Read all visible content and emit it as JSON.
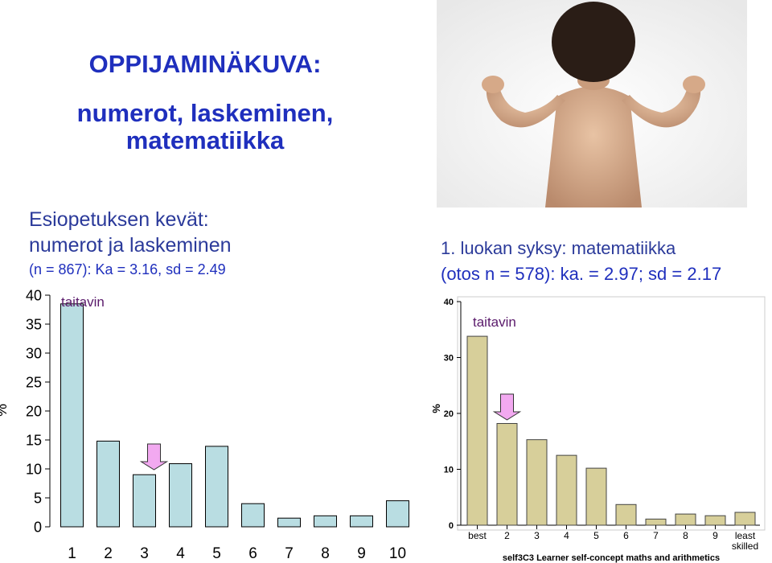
{
  "heading": {
    "title": "OPPIJAMINÄKUVA:",
    "subtitle_line1": "numerot, laskeminen,",
    "subtitle_line2": "matematiikka"
  },
  "left_panel": {
    "header_line1": "Esiopetuksen kevät:",
    "header_line2": "numerot  ja laskeminen",
    "stats": "(n = 867): Ka = 3.16, sd = 2.49"
  },
  "right_panel": {
    "header_line1": "1. luokan syksy: matematiikka",
    "stats": "(otos n = 578): ka. = 2.97; sd = 2.17"
  },
  "photo": {
    "description_icon": "child-flexing-photo"
  },
  "colors": {
    "title": "#1f2fbd",
    "left_bar_fill": "#b9dde2",
    "right_bar_fill": "#d7cf9a",
    "arrow_fill": "#f2a9f0",
    "annotation": "#5a1a6b"
  },
  "chart_data": [
    {
      "type": "bar",
      "categories": [
        "1",
        "2",
        "3",
        "4",
        "5",
        "6",
        "7",
        "8",
        "9",
        "10"
      ],
      "values": [
        38.5,
        14.8,
        9.0,
        10.9,
        13.9,
        4.0,
        1.5,
        1.9,
        1.9,
        4.5
      ],
      "ylim": [
        0,
        40
      ],
      "yticks": [
        0,
        5,
        10,
        15,
        20,
        25,
        30,
        35,
        40
      ],
      "ylabel": "%",
      "annotation": "taitavin",
      "arrow_category": "3",
      "grid": false
    },
    {
      "type": "bar",
      "categories": [
        "best",
        "2",
        "3",
        "4",
        "5",
        "6",
        "7",
        "8",
        "9",
        "least skilled"
      ],
      "values": [
        33.8,
        18.2,
        15.3,
        12.5,
        10.2,
        3.7,
        1.1,
        2.0,
        1.7,
        2.3
      ],
      "ylim": [
        0,
        40
      ],
      "yticks": [
        0,
        10,
        20,
        30,
        40
      ],
      "ylabel": "%",
      "xlabel": "self3C3 Learner self-concept maths and arithmetics",
      "annotation": "taitavin",
      "arrow_category": "2",
      "grid": false
    }
  ]
}
